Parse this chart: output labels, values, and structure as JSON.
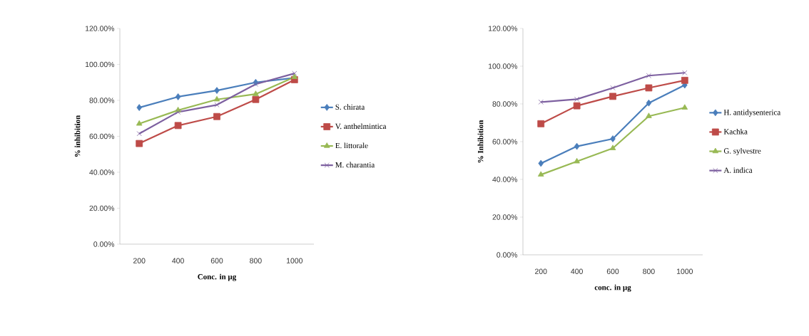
{
  "chart_data": [
    {
      "type": "line",
      "xlabel": "Conc. in µg",
      "ylabel": "% inhibition",
      "categories": [
        "200",
        "400",
        "600",
        "800",
        "1000"
      ],
      "ylim": [
        0,
        120
      ],
      "yticks": [
        {
          "value": 0,
          "label": "0.00%"
        },
        {
          "value": 20,
          "label": "20.00%"
        },
        {
          "value": 40,
          "label": "40.00%"
        },
        {
          "value": 60,
          "label": "60.00%"
        },
        {
          "value": 80,
          "label": "80.00%"
        },
        {
          "value": 100,
          "label": "100.00%"
        },
        {
          "value": 120,
          "label": "120.00%"
        }
      ],
      "grid": false,
      "legend": "right",
      "series": [
        {
          "name": "S. chirata",
          "color": "#4a7ebb",
          "marker": "diamond",
          "values": [
            76,
            82,
            85.5,
            90,
            92.5
          ]
        },
        {
          "name": "V. anthelmintica",
          "color": "#be4b48",
          "marker": "square",
          "values": [
            56,
            66,
            71,
            80.5,
            91.5
          ]
        },
        {
          "name": "E. littorale",
          "color": "#98b954",
          "marker": "triangle",
          "values": [
            67,
            74.5,
            80.5,
            83.5,
            93
          ]
        },
        {
          "name": "M. charantia",
          "color": "#7d60a0",
          "marker": "cross",
          "values": [
            61.5,
            73.5,
            77.5,
            89,
            95
          ]
        }
      ]
    },
    {
      "type": "line",
      "xlabel": "conc. in µg",
      "ylabel": "% Inhibition",
      "categories": [
        "200",
        "400",
        "600",
        "800",
        "1000"
      ],
      "ylim": [
        0,
        120
      ],
      "yticks": [
        {
          "value": 0,
          "label": "0.00%"
        },
        {
          "value": 20,
          "label": "20.00%"
        },
        {
          "value": 40,
          "label": "40.00%"
        },
        {
          "value": 60,
          "label": "60.00%"
        },
        {
          "value": 80,
          "label": "80.00%"
        },
        {
          "value": 100,
          "label": "100.00%"
        },
        {
          "value": 120,
          "label": "120.00%"
        }
      ],
      "grid": false,
      "legend": "right",
      "series": [
        {
          "name": "H. antidysenterica",
          "color": "#4a7ebb",
          "marker": "diamond",
          "values": [
            48.5,
            57.5,
            61.5,
            80.5,
            90
          ]
        },
        {
          "name": "Kachka",
          "color": "#be4b48",
          "marker": "square",
          "values": [
            69.5,
            79,
            84,
            88.5,
            92.5
          ]
        },
        {
          "name": "G. sylvestre",
          "color": "#98b954",
          "marker": "triangle",
          "values": [
            42.5,
            49.5,
            56.5,
            73.5,
            78
          ]
        },
        {
          "name": "A. indica",
          "color": "#7d60a0",
          "marker": "cross",
          "values": [
            81,
            82.5,
            88.5,
            95,
            96.5
          ]
        }
      ]
    }
  ]
}
